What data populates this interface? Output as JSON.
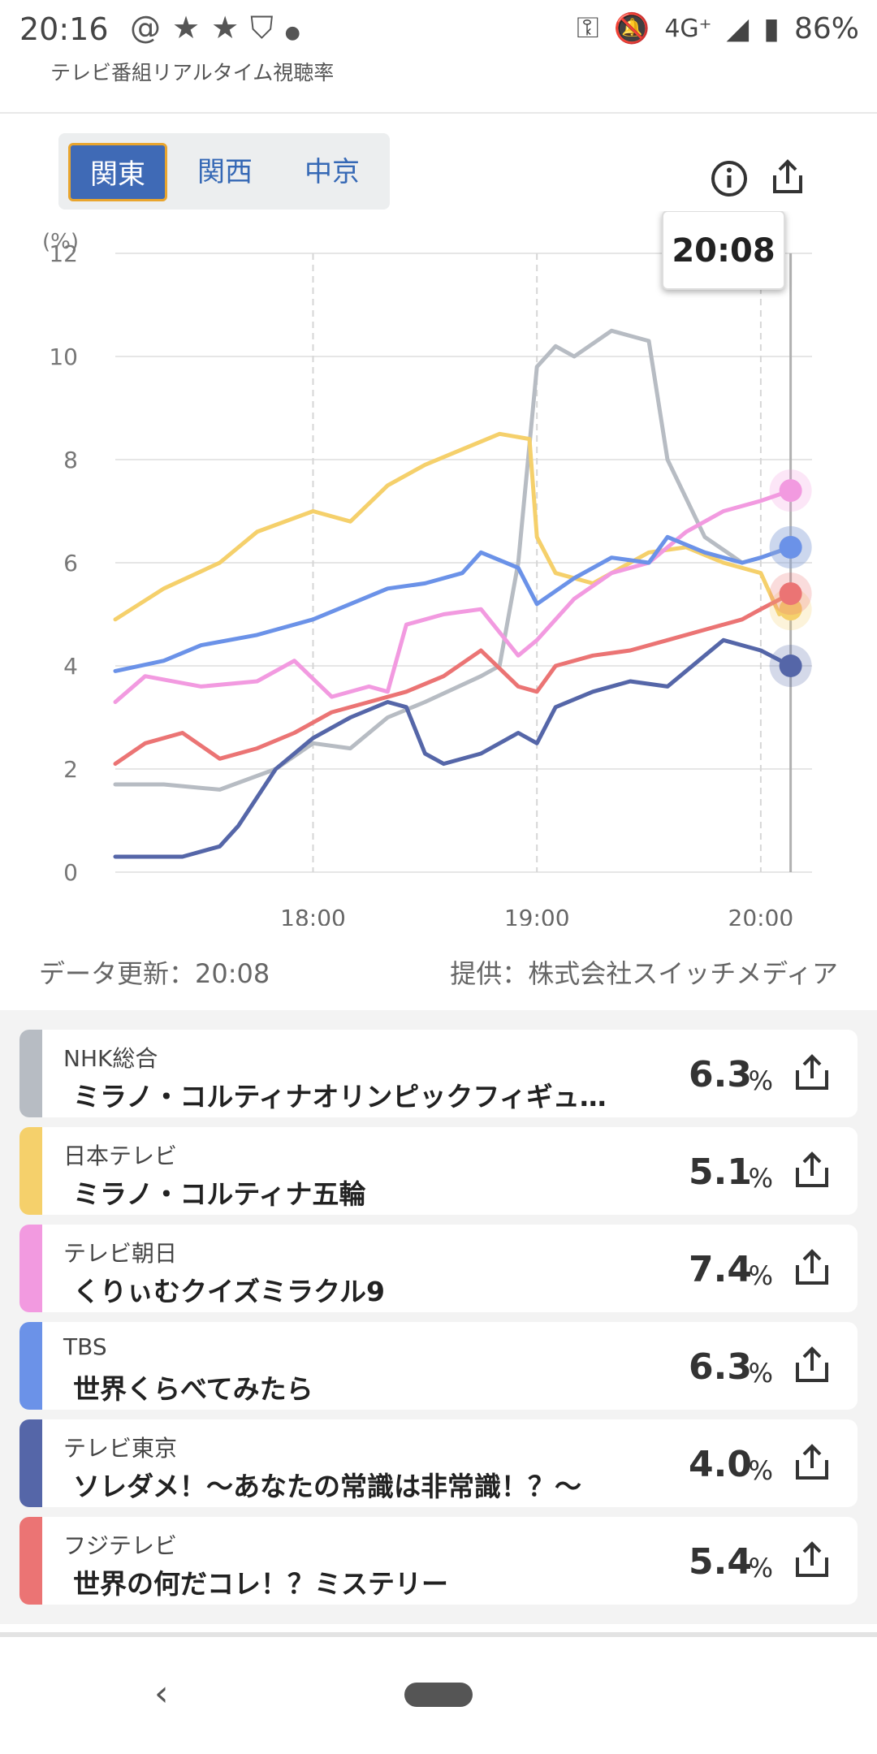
{
  "status_bar": {
    "time": "20:16",
    "network": "4G⁺",
    "battery": "86%"
  },
  "app": {
    "title": "テレビ番組リアルタイム視聴率"
  },
  "region_tabs": [
    {
      "label": "関東",
      "active": true
    },
    {
      "label": "関西",
      "active": false
    },
    {
      "label": "中京",
      "active": false
    }
  ],
  "icons": {
    "info": "info-icon",
    "share": "share-icon"
  },
  "chart_data": {
    "type": "line",
    "ylabel": "(%)",
    "ylim": [
      0,
      12
    ],
    "yticks": [
      0,
      2,
      4,
      6,
      8,
      10,
      12
    ],
    "xlim": [
      "17:07",
      "20:08"
    ],
    "xticks": [
      "18:00",
      "19:00",
      "20:00"
    ],
    "cursor_time": "20:08",
    "series": [
      {
        "name": "NHK総合",
        "color": "#b7bcc3",
        "x": [
          "17:07",
          "17:20",
          "17:35",
          "17:50",
          "18:00",
          "18:10",
          "18:20",
          "18:30",
          "18:45",
          "18:50",
          "18:55",
          "19:00",
          "19:05",
          "19:10",
          "19:20",
          "19:25",
          "19:30",
          "19:35",
          "19:45",
          "19:55",
          "20:00",
          "20:08"
        ],
        "y": [
          1.7,
          1.7,
          1.6,
          2.0,
          2.5,
          2.4,
          3.0,
          3.3,
          3.8,
          4.0,
          6.0,
          9.8,
          10.2,
          10.0,
          10.5,
          10.4,
          10.3,
          8.0,
          6.5,
          6.0,
          6.1,
          6.3
        ]
      },
      {
        "name": "日本テレビ",
        "color": "#f5d06b",
        "x": [
          "17:07",
          "17:20",
          "17:35",
          "17:45",
          "18:00",
          "18:10",
          "18:20",
          "18:30",
          "18:40",
          "18:50",
          "18:58",
          "19:00",
          "19:05",
          "19:15",
          "19:30",
          "19:40",
          "19:50",
          "20:00",
          "20:05",
          "20:08"
        ],
        "y": [
          4.9,
          5.5,
          6.0,
          6.6,
          7.0,
          6.8,
          7.5,
          7.9,
          8.2,
          8.5,
          8.4,
          6.5,
          5.8,
          5.6,
          6.2,
          6.3,
          6.0,
          5.8,
          5.0,
          5.1
        ]
      },
      {
        "name": "テレビ朝日",
        "color": "#f29ae0",
        "x": [
          "17:07",
          "17:15",
          "17:30",
          "17:45",
          "17:55",
          "18:05",
          "18:15",
          "18:20",
          "18:25",
          "18:35",
          "18:45",
          "18:55",
          "19:00",
          "19:10",
          "19:20",
          "19:30",
          "19:40",
          "19:50",
          "20:00",
          "20:08"
        ],
        "y": [
          3.3,
          3.8,
          3.6,
          3.7,
          4.1,
          3.4,
          3.6,
          3.5,
          4.8,
          5.0,
          5.1,
          4.2,
          4.5,
          5.3,
          5.8,
          6.0,
          6.6,
          7.0,
          7.2,
          7.4
        ]
      },
      {
        "name": "TBS",
        "color": "#6b92e8",
        "x": [
          "17:07",
          "17:20",
          "17:30",
          "17:45",
          "18:00",
          "18:10",
          "18:20",
          "18:30",
          "18:40",
          "18:45",
          "18:55",
          "19:00",
          "19:10",
          "19:20",
          "19:30",
          "19:35",
          "19:45",
          "19:55",
          "20:00",
          "20:08"
        ],
        "y": [
          3.9,
          4.1,
          4.4,
          4.6,
          4.9,
          5.2,
          5.5,
          5.6,
          5.8,
          6.2,
          5.9,
          5.2,
          5.7,
          6.1,
          6.0,
          6.5,
          6.2,
          6.0,
          6.1,
          6.3
        ]
      },
      {
        "name": "テレビ東京",
        "color": "#5566a8",
        "x": [
          "17:07",
          "17:15",
          "17:25",
          "17:35",
          "17:40",
          "17:50",
          "18:00",
          "18:10",
          "18:20",
          "18:25",
          "18:30",
          "18:35",
          "18:45",
          "18:55",
          "19:00",
          "19:05",
          "19:15",
          "19:25",
          "19:35",
          "19:45",
          "19:50",
          "20:00",
          "20:08"
        ],
        "y": [
          0.3,
          0.3,
          0.3,
          0.5,
          0.9,
          2.0,
          2.6,
          3.0,
          3.3,
          3.2,
          2.3,
          2.1,
          2.3,
          2.7,
          2.5,
          3.2,
          3.5,
          3.7,
          3.6,
          4.2,
          4.5,
          4.3,
          4.0
        ]
      },
      {
        "name": "フジテレビ",
        "color": "#eb7474",
        "x": [
          "17:07",
          "17:15",
          "17:25",
          "17:35",
          "17:45",
          "17:55",
          "18:05",
          "18:15",
          "18:25",
          "18:35",
          "18:45",
          "18:55",
          "19:00",
          "19:05",
          "19:15",
          "19:25",
          "19:35",
          "19:45",
          "19:55",
          "20:00",
          "20:08"
        ],
        "y": [
          2.1,
          2.5,
          2.7,
          2.2,
          2.4,
          2.7,
          3.1,
          3.3,
          3.5,
          3.8,
          4.3,
          3.6,
          3.5,
          4.0,
          4.2,
          4.3,
          4.5,
          4.7,
          4.9,
          5.1,
          5.4
        ]
      }
    ]
  },
  "footer": {
    "updated": "データ更新：20:08",
    "provider": "提供：株式会社スイッチメディア"
  },
  "programs": [
    {
      "channel": "NHK総合",
      "title": "ミラノ・コルティナオリンピックフィギュ…",
      "rate": "6.3",
      "unit": "%",
      "color": "#b7bcc3"
    },
    {
      "channel": "日本テレビ",
      "title": "ミラノ・コルティナ五輪",
      "rate": "5.1",
      "unit": "%",
      "color": "#f5d06b"
    },
    {
      "channel": "テレビ朝日",
      "title": "くりぃむクイズミラクル9",
      "rate": "7.4",
      "unit": "%",
      "color": "#f29ae0"
    },
    {
      "channel": "TBS",
      "title": "世界くらべてみたら",
      "rate": "6.3",
      "unit": "%",
      "color": "#6b92e8"
    },
    {
      "channel": "テレビ東京",
      "title": "ソレダメ！～あなたの常識は非常識！？～",
      "rate": "4.0",
      "unit": "%",
      "color": "#5566a8"
    },
    {
      "channel": "フジテレビ",
      "title": "世界の何だコレ！？ミステリー",
      "rate": "5.4",
      "unit": "%",
      "color": "#eb7474"
    }
  ],
  "nav": {
    "back": "‹"
  }
}
